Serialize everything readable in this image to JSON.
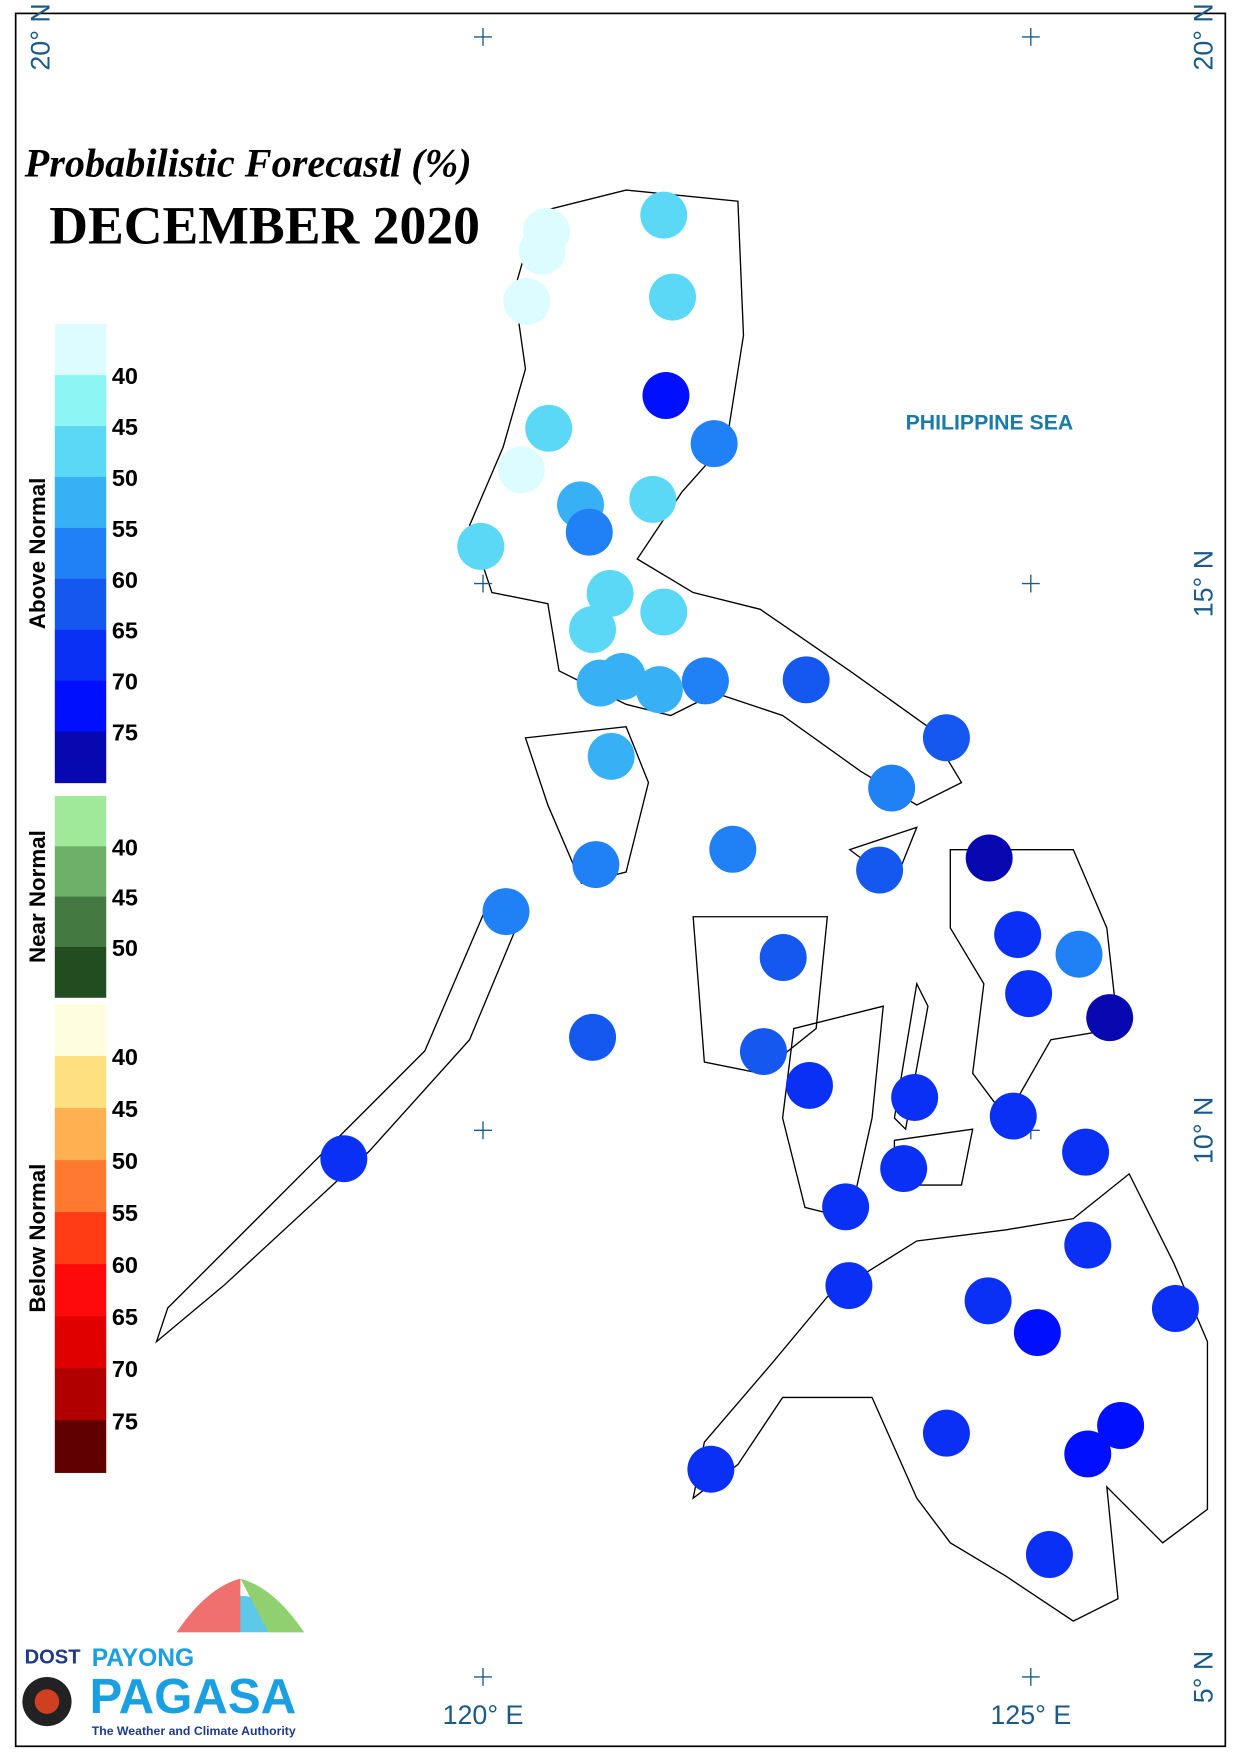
{
  "title": "Probabilistic Forecastl (%)",
  "subtitle": "DECEMBER 2020",
  "sea_label": "PHILIPPINE SEA",
  "lat_labels": [
    {
      "value": 20,
      "label": "20° N"
    },
    {
      "value": 15,
      "label": "15° N"
    },
    {
      "value": 10,
      "label": "10° N"
    },
    {
      "value": 5,
      "label": "5° N"
    }
  ],
  "lon_labels": [
    {
      "value": 120,
      "label": "120° E"
    },
    {
      "value": 125,
      "label": "125° E"
    }
  ],
  "legend": [
    {
      "title": "Above Normal",
      "colors": [
        "#ddfcff",
        "#8ef5f5",
        "#5ad8f5",
        "#37b0f5",
        "#2080f5",
        "#1458f0",
        "#0a30f5",
        "#0010ff",
        "#0808b0"
      ],
      "labels": [
        40,
        45,
        50,
        55,
        60,
        65,
        70,
        75
      ]
    },
    {
      "title": "Near Normal",
      "colors": [
        "#a0e89a",
        "#6eb06a",
        "#447a42",
        "#224d20"
      ],
      "labels": [
        40,
        45,
        50
      ]
    },
    {
      "title": "Below Normal",
      "colors": [
        "#fffde0",
        "#ffe080",
        "#ffb050",
        "#ff7a30",
        "#ff3c14",
        "#ff0a0a",
        "#e00000",
        "#b00000",
        "#600000"
      ],
      "labels": [
        40,
        45,
        50,
        55,
        60,
        65,
        70,
        75
      ]
    }
  ],
  "stations": [
    {
      "lon": 120.58,
      "lat": 18.22,
      "value": 38
    },
    {
      "lon": 120.54,
      "lat": 18.04,
      "value": 38
    },
    {
      "lon": 120.4,
      "lat": 17.58,
      "value": 38
    },
    {
      "lon": 121.65,
      "lat": 18.37,
      "value": 47
    },
    {
      "lon": 121.73,
      "lat": 17.62,
      "value": 47
    },
    {
      "lon": 121.67,
      "lat": 16.72,
      "value": 72
    },
    {
      "lon": 120.6,
      "lat": 16.42,
      "value": 47
    },
    {
      "lon": 122.11,
      "lat": 16.28,
      "value": 57
    },
    {
      "lon": 120.35,
      "lat": 16.04,
      "value": 38
    },
    {
      "lon": 120.89,
      "lat": 15.72,
      "value": 52
    },
    {
      "lon": 121.55,
      "lat": 15.77,
      "value": 47
    },
    {
      "lon": 120.97,
      "lat": 15.47,
      "value": 57
    },
    {
      "lon": 119.98,
      "lat": 15.34,
      "value": 47
    },
    {
      "lon": 121.16,
      "lat": 14.91,
      "value": 47
    },
    {
      "lon": 121.65,
      "lat": 14.74,
      "value": 47
    },
    {
      "lon": 121.0,
      "lat": 14.58,
      "value": 47
    },
    {
      "lon": 121.07,
      "lat": 14.09,
      "value": 52
    },
    {
      "lon": 121.27,
      "lat": 14.15,
      "value": 52
    },
    {
      "lon": 121.61,
      "lat": 14.03,
      "value": 52
    },
    {
      "lon": 122.03,
      "lat": 14.11,
      "value": 57
    },
    {
      "lon": 122.95,
      "lat": 14.12,
      "value": 62
    },
    {
      "lon": 124.23,
      "lat": 13.59,
      "value": 62
    },
    {
      "lon": 121.17,
      "lat": 13.42,
      "value": 52
    },
    {
      "lon": 123.73,
      "lat": 13.13,
      "value": 57
    },
    {
      "lon": 122.28,
      "lat": 12.57,
      "value": 57
    },
    {
      "lon": 121.03,
      "lat": 12.43,
      "value": 57
    },
    {
      "lon": 124.62,
      "lat": 12.49,
      "value": 77
    },
    {
      "lon": 123.62,
      "lat": 12.38,
      "value": 62
    },
    {
      "lon": 120.21,
      "lat": 12.0,
      "value": 57
    },
    {
      "lon": 124.88,
      "lat": 11.79,
      "value": 67
    },
    {
      "lon": 125.44,
      "lat": 11.61,
      "value": 57
    },
    {
      "lon": 122.74,
      "lat": 11.58,
      "value": 62
    },
    {
      "lon": 124.98,
      "lat": 11.25,
      "value": 67
    },
    {
      "lon": 125.72,
      "lat": 11.03,
      "value": 77
    },
    {
      "lon": 121.0,
      "lat": 10.85,
      "value": 62
    },
    {
      "lon": 122.56,
      "lat": 10.72,
      "value": 62
    },
    {
      "lon": 122.98,
      "lat": 10.41,
      "value": 67
    },
    {
      "lon": 123.94,
      "lat": 10.3,
      "value": 67
    },
    {
      "lon": 124.84,
      "lat": 10.13,
      "value": 67
    },
    {
      "lon": 118.73,
      "lat": 9.74,
      "value": 67
    },
    {
      "lon": 125.5,
      "lat": 9.8,
      "value": 67
    },
    {
      "lon": 123.84,
      "lat": 9.65,
      "value": 67
    },
    {
      "lon": 123.31,
      "lat": 9.3,
      "value": 67
    },
    {
      "lon": 125.52,
      "lat": 8.95,
      "value": 67
    },
    {
      "lon": 123.34,
      "lat": 8.58,
      "value": 67
    },
    {
      "lon": 124.61,
      "lat": 8.44,
      "value": 67
    },
    {
      "lon": 125.06,
      "lat": 8.15,
      "value": 72
    },
    {
      "lon": 126.32,
      "lat": 8.37,
      "value": 67
    },
    {
      "lon": 124.23,
      "lat": 7.23,
      "value": 67
    },
    {
      "lon": 125.82,
      "lat": 7.3,
      "value": 72
    },
    {
      "lon": 125.52,
      "lat": 7.04,
      "value": 72
    },
    {
      "lon": 122.08,
      "lat": 6.9,
      "value": 67
    },
    {
      "lon": 125.17,
      "lat": 6.12,
      "value": 67
    }
  ],
  "logo": {
    "agency": "DOST",
    "brand_top": "PAYONG",
    "brand": "PAGASA",
    "tagline": "The Weather and Climate Authority"
  }
}
